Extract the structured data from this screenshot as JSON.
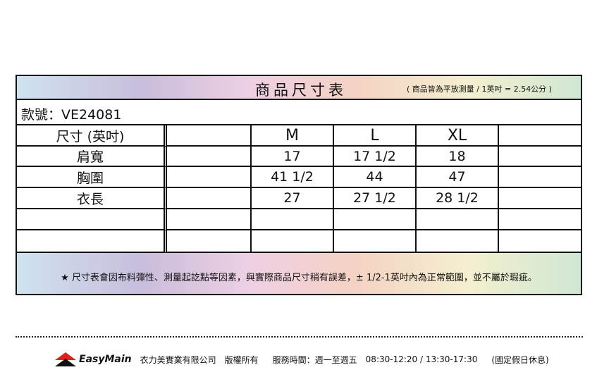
{
  "header": {
    "title": "商品尺寸表",
    "unit_note": "( 商品皆為平放測量 / 1英吋 = 2.54公分 )"
  },
  "model": "款號：VE24081",
  "table": {
    "columns": [
      "尺寸 (英吋)",
      "",
      "M",
      "L",
      "XL",
      ""
    ],
    "rows": [
      [
        "肩寬",
        "",
        "17",
        "17 1/2",
        "18",
        ""
      ],
      [
        "胸圍",
        "",
        "41 1/2",
        "44",
        "47",
        ""
      ],
      [
        "衣長",
        "",
        "27",
        "27 1/2",
        "28 1/2",
        ""
      ],
      [
        "",
        "",
        "",
        "",
        "",
        ""
      ],
      [
        "",
        "",
        "",
        "",
        "",
        ""
      ]
    ]
  },
  "note": "★ 尺寸表會因布料彈性、測量起訖點等因素，與實際商品尺寸稍有誤差，± 1/2-1英吋內為正常範圍，並不屬於瑕疵。",
  "footer": {
    "brand": "EasyMain",
    "company": "衣力美實業有限公司",
    "rights": "版權所有",
    "hours_label": "服務時間：週一至週五",
    "hours": "08:30-12:20 / 13:30-17:30",
    "holiday": "(國定假日休息)"
  }
}
